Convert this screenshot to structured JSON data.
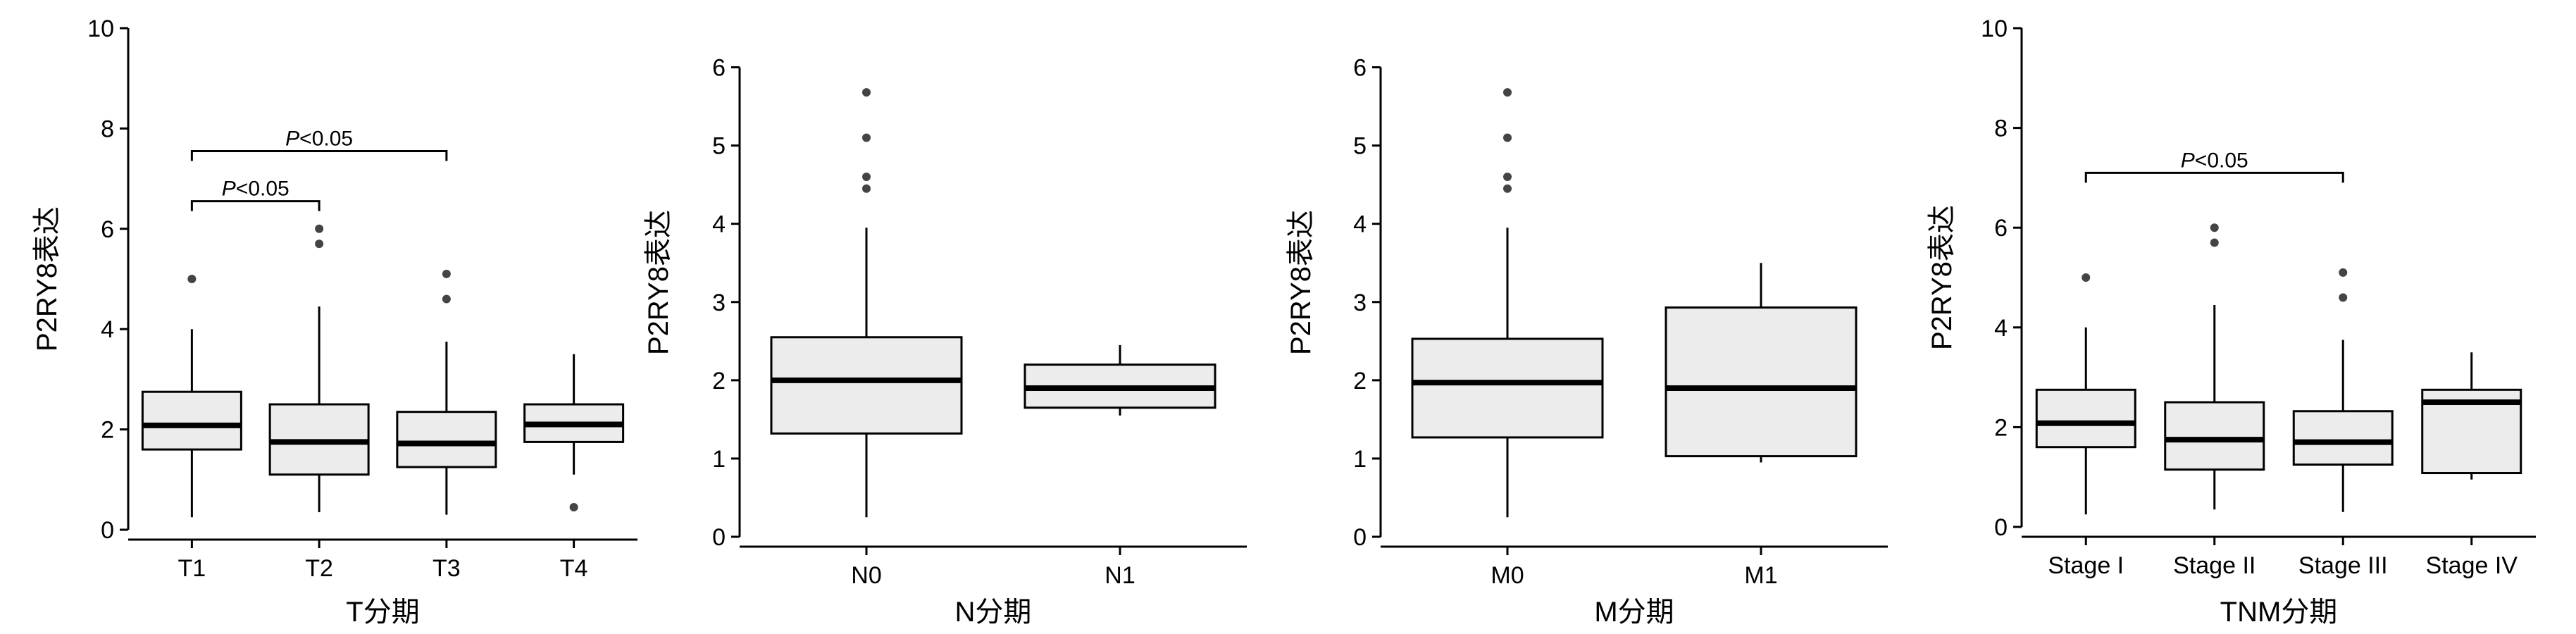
{
  "chart_data": [
    {
      "type": "box",
      "xlabel": "T分期",
      "ylabel": "P2RY8表达",
      "ylim": [
        0,
        10
      ],
      "yticks": [
        0,
        2,
        4,
        6,
        8,
        10
      ],
      "categories": [
        "T1",
        "T2",
        "T3",
        "T4"
      ],
      "boxes": [
        {
          "category": "T1",
          "whisker_low": 0.25,
          "q1": 1.6,
          "median": 2.08,
          "q3": 2.75,
          "whisker_high": 4.0,
          "outliers": [
            5.0
          ]
        },
        {
          "category": "T2",
          "whisker_low": 0.35,
          "q1": 1.1,
          "median": 1.75,
          "q3": 2.5,
          "whisker_high": 4.45,
          "outliers": [
            5.7,
            6.0
          ]
        },
        {
          "category": "T3",
          "whisker_low": 0.3,
          "q1": 1.25,
          "median": 1.72,
          "q3": 2.35,
          "whisker_high": 3.75,
          "outliers": [
            4.6,
            5.1
          ]
        },
        {
          "category": "T4",
          "whisker_low": 1.1,
          "q1": 1.75,
          "median": 2.1,
          "q3": 2.5,
          "whisker_high": 3.5,
          "outliers": [
            0.45
          ]
        }
      ],
      "annotations": [
        {
          "from": "T1",
          "to": "T2",
          "y": 6.55,
          "text": "P<0.05"
        },
        {
          "from": "T1",
          "to": "T3",
          "y": 7.55,
          "text": "P<0.05"
        }
      ]
    },
    {
      "type": "box",
      "xlabel": "N分期",
      "ylabel": "P2RY8表达",
      "ylim": [
        0,
        6.5
      ],
      "yticks": [
        0,
        1,
        2,
        3,
        4,
        5,
        6
      ],
      "categories": [
        "N0",
        "N1"
      ],
      "boxes": [
        {
          "category": "N0",
          "whisker_low": 0.25,
          "q1": 1.32,
          "median": 2.0,
          "q3": 2.55,
          "whisker_high": 3.95,
          "outliers": [
            4.45,
            4.6,
            5.1,
            5.68
          ]
        },
        {
          "category": "N1",
          "whisker_low": 1.55,
          "q1": 1.65,
          "median": 1.9,
          "q3": 2.2,
          "whisker_high": 2.45,
          "outliers": []
        }
      ],
      "annotations": []
    },
    {
      "type": "box",
      "xlabel": "M分期",
      "ylabel": "P2RY8表达",
      "ylim": [
        0,
        6.5
      ],
      "yticks": [
        0,
        1,
        2,
        3,
        4,
        5,
        6
      ],
      "categories": [
        "M0",
        "M1"
      ],
      "boxes": [
        {
          "category": "M0",
          "whisker_low": 0.25,
          "q1": 1.27,
          "median": 1.97,
          "q3": 2.53,
          "whisker_high": 3.95,
          "outliers": [
            4.45,
            4.6,
            5.1,
            5.68
          ]
        },
        {
          "category": "M1",
          "whisker_low": 0.95,
          "q1": 1.03,
          "median": 1.9,
          "q3": 2.93,
          "whisker_high": 3.5,
          "outliers": []
        }
      ],
      "annotations": []
    },
    {
      "type": "box",
      "xlabel": "TNM分期",
      "ylabel": "P2RY8表达",
      "ylim": [
        0,
        10
      ],
      "yticks": [
        0,
        2,
        4,
        6,
        8,
        10
      ],
      "categories": [
        "Stage I",
        "Stage II",
        "Stage III",
        "Stage IV"
      ],
      "boxes": [
        {
          "category": "Stage I",
          "whisker_low": 0.25,
          "q1": 1.6,
          "median": 2.08,
          "q3": 2.75,
          "whisker_high": 4.0,
          "outliers": [
            5.0
          ]
        },
        {
          "category": "Stage II",
          "whisker_low": 0.35,
          "q1": 1.15,
          "median": 1.75,
          "q3": 2.5,
          "whisker_high": 4.45,
          "outliers": [
            5.7,
            6.0
          ]
        },
        {
          "category": "Stage III",
          "whisker_low": 0.3,
          "q1": 1.25,
          "median": 1.7,
          "q3": 2.32,
          "whisker_high": 3.75,
          "outliers": [
            4.6,
            5.1
          ]
        },
        {
          "category": "Stage IV",
          "whisker_low": 0.95,
          "q1": 1.08,
          "median": 2.5,
          "q3": 2.75,
          "whisker_high": 3.5,
          "outliers": []
        }
      ],
      "annotations": [
        {
          "from": "Stage I",
          "to": "Stage III",
          "y": 7.1,
          "text": "P<0.05"
        }
      ]
    }
  ]
}
